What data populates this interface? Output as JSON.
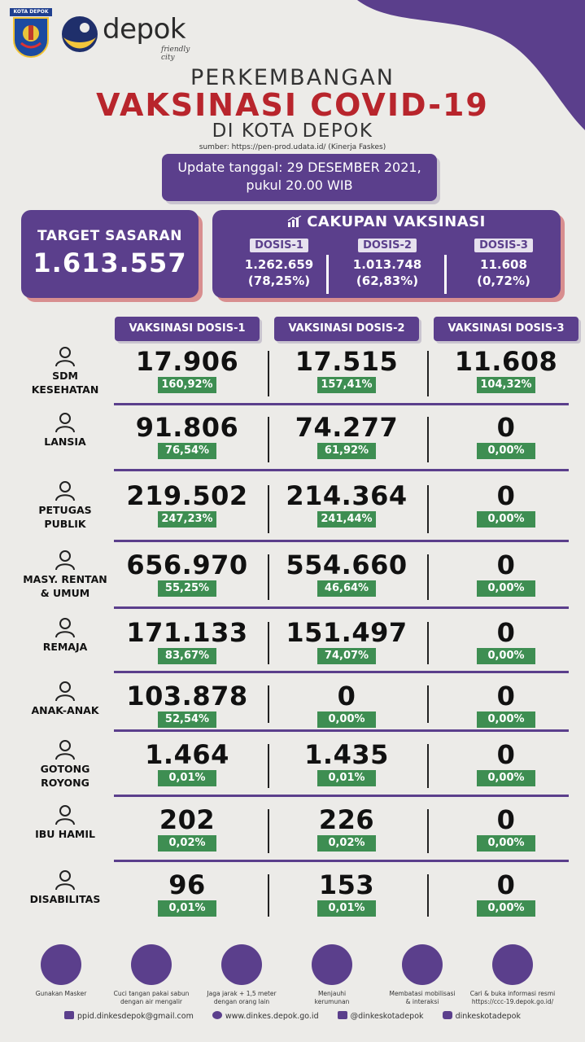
{
  "header": {
    "logo_kota_caption": "KOTA DEPOK",
    "logo_word": "depok",
    "logo_tagline": "friendly city",
    "title_line1": "PERKEMBANGAN",
    "title_line2": "VAKSINASI COVID-19",
    "title_line3": "DI KOTA DEPOK",
    "source": "sumber: https://pen-prod.udata.id/ (Kinerja Faskes)",
    "update_line1": "Update tanggal: 29 DESEMBER 2021,",
    "update_line2": "pukul 20.00 WIB"
  },
  "target": {
    "label": "TARGET SASARAN",
    "value": "1.613.557"
  },
  "cakupan": {
    "title": "CAKUPAN VAKSINASI",
    "dosis": [
      {
        "label": "DOSIS-1",
        "value": "1.262.659",
        "percent": "(78,25%)"
      },
      {
        "label": "DOSIS-2",
        "value": "1.013.748",
        "percent": "(62,83%)"
      },
      {
        "label": "DOSIS-3",
        "value": "11.608",
        "percent": "(0,72%)"
      }
    ]
  },
  "table": {
    "columns": [
      "VAKSINASI DOSIS-1",
      "VAKSINASI DOSIS-2",
      "VAKSINASI DOSIS-3"
    ],
    "rows": [
      {
        "label_1": "SDM",
        "label_2": "KESEHATAN",
        "icon": "health-workers-icon",
        "cells": [
          {
            "value": "17.906",
            "percent": "160,92%"
          },
          {
            "value": "17.515",
            "percent": "157,41%"
          },
          {
            "value": "11.608",
            "percent": "104,32%"
          }
        ]
      },
      {
        "label_1": "LANSIA",
        "label_2": "",
        "icon": "elderly-icon",
        "cells": [
          {
            "value": "91.806",
            "percent": "76,54%"
          },
          {
            "value": "74.277",
            "percent": "61,92%"
          },
          {
            "value": "0",
            "percent": "0,00%"
          }
        ]
      },
      {
        "label_1": "PETUGAS",
        "label_2": "PUBLIK",
        "icon": "public-officer-icon",
        "cells": [
          {
            "value": "219.502",
            "percent": "247,23%"
          },
          {
            "value": "214.364",
            "percent": "241,44%"
          },
          {
            "value": "0",
            "percent": "0,00%"
          }
        ]
      },
      {
        "label_1": "MASY. RENTAN",
        "label_2": "& UMUM",
        "icon": "community-icon",
        "cells": [
          {
            "value": "656.970",
            "percent": "55,25%"
          },
          {
            "value": "554.660",
            "percent": "46,64%"
          },
          {
            "value": "0",
            "percent": "0,00%"
          }
        ]
      },
      {
        "label_1": "REMAJA",
        "label_2": "",
        "icon": "teen-icon",
        "cells": [
          {
            "value": "171.133",
            "percent": "83,67%"
          },
          {
            "value": "151.497",
            "percent": "74,07%"
          },
          {
            "value": "0",
            "percent": "0,00%"
          }
        ]
      },
      {
        "label_1": "ANAK-ANAK",
        "label_2": "",
        "icon": "child-icon",
        "cells": [
          {
            "value": "103.878",
            "percent": "52,54%"
          },
          {
            "value": "0",
            "percent": "0,00%"
          },
          {
            "value": "0",
            "percent": "0,00%"
          }
        ]
      },
      {
        "label_1": "GOTONG",
        "label_2": "ROYONG",
        "icon": "cooperation-icon",
        "cells": [
          {
            "value": "1.464",
            "percent": "0,01%"
          },
          {
            "value": "1.435",
            "percent": "0,01%"
          },
          {
            "value": "0",
            "percent": "0,00%"
          }
        ]
      },
      {
        "label_1": "IBU HAMIL",
        "label_2": "",
        "icon": "pregnant-icon",
        "cells": [
          {
            "value": "202",
            "percent": "0,02%"
          },
          {
            "value": "226",
            "percent": "0,02%"
          },
          {
            "value": "0",
            "percent": "0,00%"
          }
        ]
      },
      {
        "label_1": "DISABILITAS",
        "label_2": "",
        "icon": "wheelchair-icon",
        "cells": [
          {
            "value": "96",
            "percent": "0,01%"
          },
          {
            "value": "153",
            "percent": "0,01%"
          },
          {
            "value": "0",
            "percent": "0,00%"
          }
        ]
      }
    ]
  },
  "footer": {
    "tips": [
      {
        "icon": "mask-icon",
        "line1": "Gunakan Masker",
        "line2": ""
      },
      {
        "icon": "handwash-icon",
        "line1": "Cuci tangan pakai sabun",
        "line2": "dengan air mengalir"
      },
      {
        "icon": "distance-icon",
        "line1": "Jaga jarak + 1,5 meter",
        "line2": "dengan orang lain"
      },
      {
        "icon": "crowd-icon",
        "line1": "Menjauhi",
        "line2": "kerumunan"
      },
      {
        "icon": "mobility-icon",
        "line1": "Membatasi mobilisasi",
        "line2": "& interaksi"
      },
      {
        "icon": "globe-icon",
        "line1": "Cari & buka informasi resmi",
        "line2": "https://ccc-19.depok.go.id/"
      }
    ],
    "email": "ppid.dinkesdepok@gmail.com",
    "website": "www.dinkes.depok.go.id",
    "twitter": "@dinkeskotadepok",
    "instagram": "dinkeskotadepok"
  },
  "colors": {
    "purple": "#5b3f8c",
    "red_title": "#b8252c",
    "green_badge": "#3e8e52",
    "shadow_pink": "#d88e8f"
  }
}
